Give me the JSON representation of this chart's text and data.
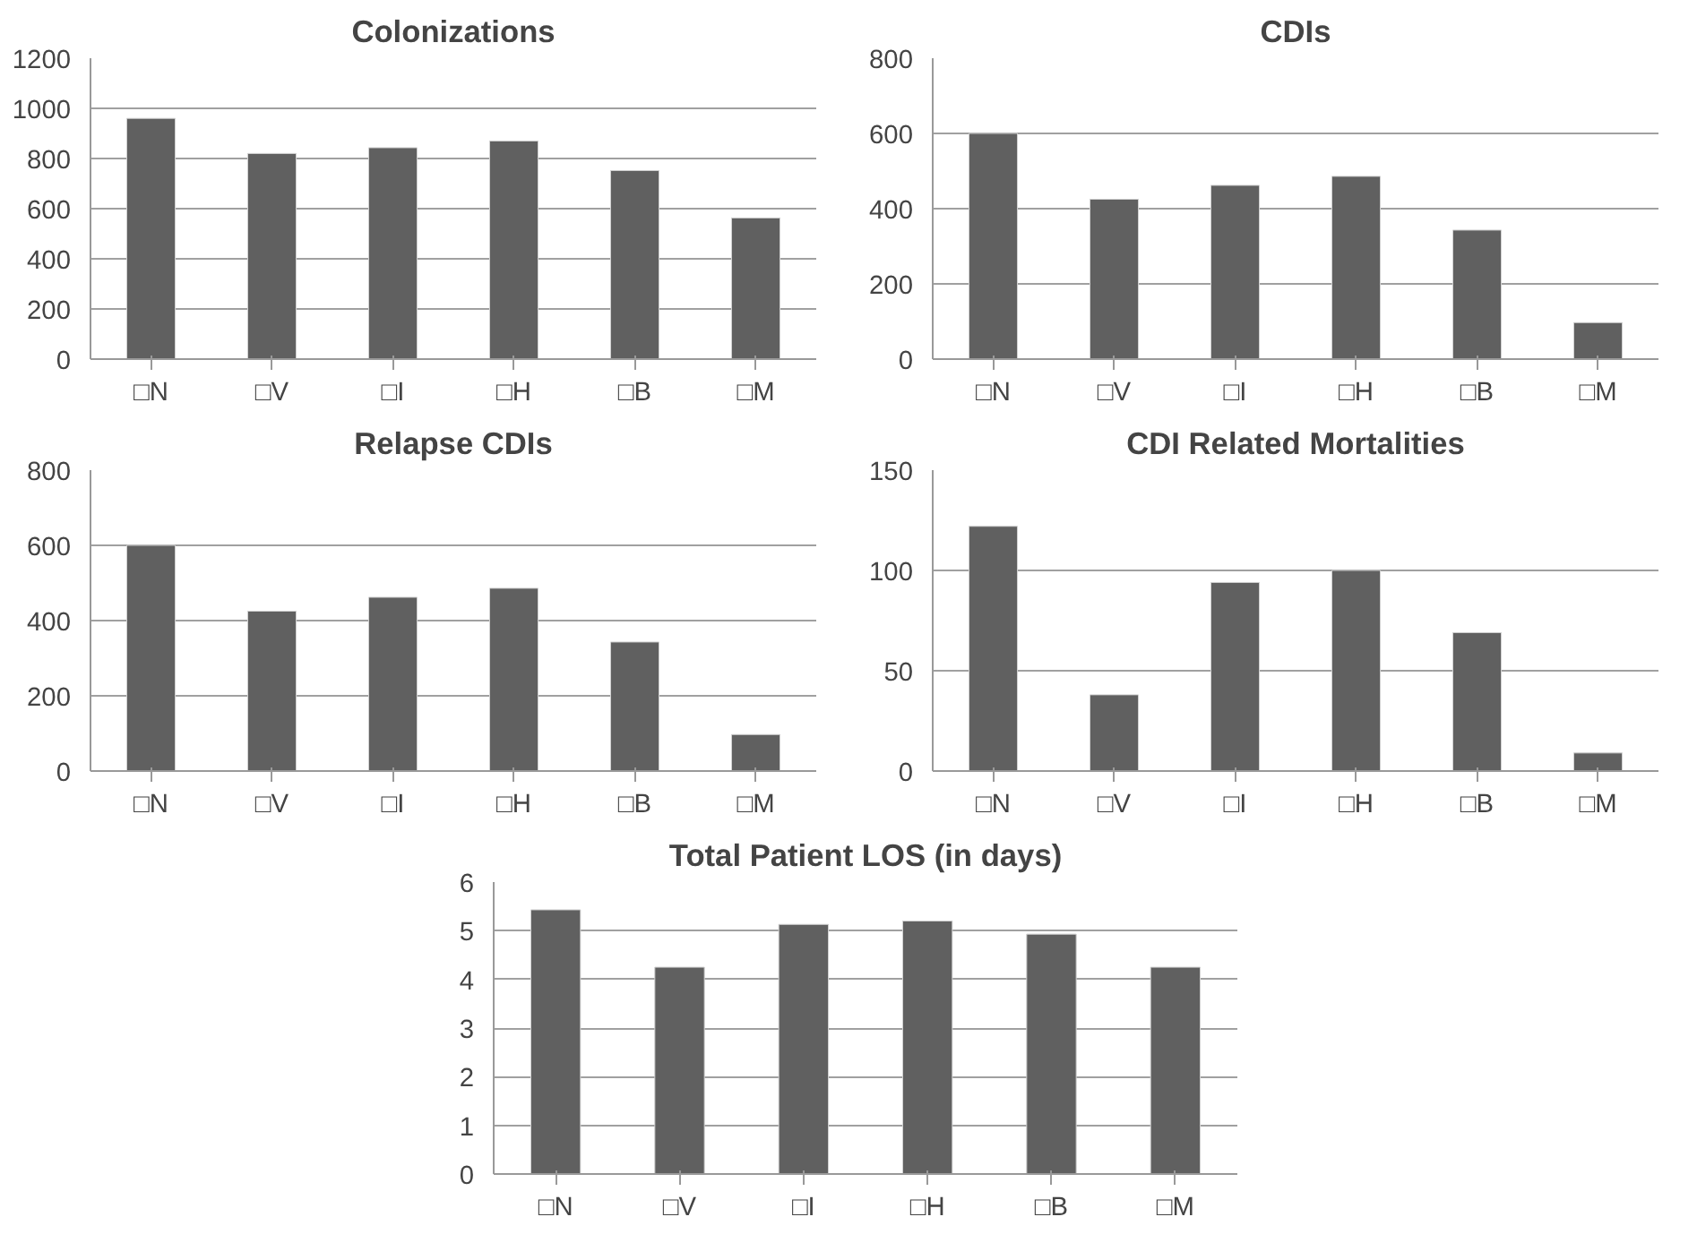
{
  "chart_data": [
    {
      "type": "bar",
      "title": "Colonizations",
      "categories": [
        "□N",
        "□V",
        "□I",
        "□H",
        "□B",
        "□M"
      ],
      "values": [
        960,
        820,
        843,
        870,
        752,
        563
      ],
      "color": "#606060",
      "ylim": [
        0,
        1200
      ],
      "yticks": [
        0,
        200,
        400,
        600,
        800,
        1000,
        1200
      ],
      "grid": "y"
    },
    {
      "type": "bar",
      "title": "CDIs",
      "categories": [
        "□N",
        "□V",
        "□I",
        "□H",
        "□B",
        "□M"
      ],
      "values": [
        600,
        425,
        462,
        486,
        343,
        97
      ],
      "color": "#606060",
      "ylim": [
        0,
        800
      ],
      "yticks": [
        0,
        200,
        400,
        600,
        800
      ],
      "grid": "y"
    },
    {
      "type": "bar",
      "title": "Relapse CDIs",
      "categories": [
        "□N",
        "□V",
        "□I",
        "□H",
        "□B",
        "□M"
      ],
      "values": [
        600,
        425,
        462,
        486,
        343,
        97
      ],
      "color": "#606060",
      "ylim": [
        0,
        800
      ],
      "yticks": [
        0,
        200,
        400,
        600,
        800
      ],
      "grid": "y"
    },
    {
      "type": "bar",
      "title": "CDI Related Mortalities",
      "categories": [
        "□N",
        "□V",
        "□I",
        "□H",
        "□B",
        "□M"
      ],
      "values": [
        122,
        38,
        94,
        100,
        69,
        9
      ],
      "color": "#606060",
      "ylim": [
        0,
        150
      ],
      "yticks": [
        0,
        50,
        100,
        150
      ],
      "grid": "y"
    },
    {
      "type": "bar",
      "title": "Total Patient LOS (in days)",
      "categories": [
        "□N",
        "□V",
        "□I",
        "□H",
        "□B",
        "□M"
      ],
      "values": [
        5.43,
        4.25,
        5.13,
        5.2,
        4.93,
        4.25
      ],
      "color": "#606060",
      "ylim": [
        0,
        6
      ],
      "yticks": [
        0,
        1,
        2,
        3,
        4,
        5,
        6
      ],
      "grid": "y"
    }
  ]
}
